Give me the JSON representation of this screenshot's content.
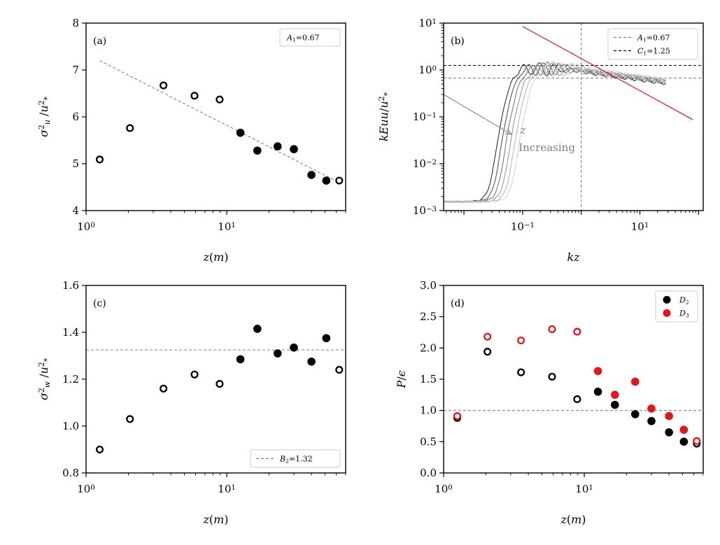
{
  "chart_data": [
    {
      "id": "a",
      "type": "scatter",
      "panel_label": "(a)",
      "xscale": "log",
      "xlim": [
        1,
        70
      ],
      "ylim": [
        4,
        8
      ],
      "xticks": [
        {
          "v": 1,
          "b": "10",
          "e": "0"
        },
        {
          "v": 10,
          "b": "10",
          "e": "1"
        }
      ],
      "yticks": [
        4,
        5,
        6,
        7,
        8
      ],
      "xlabel": "z(m)",
      "ylabel": "σu²/u*²",
      "legend": {
        "position": "top-right",
        "entries": [
          {
            "label": "A₁=0.67",
            "style": "dashed-gray"
          }
        ],
        "box_only": true
      },
      "series": [
        {
          "name": "open",
          "marker": "open",
          "color": "#000000",
          "points": [
            [
              1.25,
              5.09
            ],
            [
              2.05,
              5.76
            ],
            [
              3.55,
              6.67
            ],
            [
              5.9,
              6.45
            ],
            [
              8.9,
              6.37
            ],
            [
              63,
              4.64
            ]
          ]
        },
        {
          "name": "filled",
          "marker": "filled",
          "color": "#000000",
          "points": [
            [
              12.5,
              5.66
            ],
            [
              16.5,
              5.28
            ],
            [
              23,
              5.37
            ],
            [
              30,
              5.31
            ],
            [
              40,
              4.76
            ],
            [
              51,
              4.64
            ]
          ]
        }
      ],
      "lines": [
        {
          "kind": "segment",
          "from": [
            1.25,
            7.2
          ],
          "to": [
            60,
            4.63
          ],
          "style": "dashed-gray"
        }
      ]
    },
    {
      "id": "b",
      "type": "line",
      "panel_label": "(b)",
      "xscale": "log",
      "yscale": "log",
      "xlim": [
        0.0045,
        120
      ],
      "ylim": [
        0.001,
        10
      ],
      "xticks": [
        {
          "v": 0.1,
          "b": "10",
          "e": "−1"
        },
        {
          "v": 10,
          "b": "10",
          "e": "1"
        }
      ],
      "yticks": [
        {
          "v": 0.001,
          "b": "10",
          "e": "−3"
        },
        {
          "v": 0.01,
          "b": "10",
          "e": "−2"
        },
        {
          "v": 0.1,
          "b": "10",
          "e": "−1"
        },
        {
          "v": 1,
          "b": "10",
          "e": "0"
        },
        {
          "v": 10,
          "b": "10",
          "e": "1"
        }
      ],
      "xlabel": "kz",
      "ylabel": "kEuu/u*²",
      "legend": {
        "position": "top-right",
        "entries": [
          {
            "label": "A₁=0.67",
            "style": "dashed-gray"
          },
          {
            "label": "C₁=1.25",
            "style": "dashed-black"
          }
        ]
      },
      "hlines": [
        {
          "y": 0.67,
          "style": "dashed-gray"
        },
        {
          "y": 1.25,
          "style": "dashed-black"
        }
      ],
      "vlines": [
        {
          "x": 1.0,
          "style": "dashed-gray"
        }
      ],
      "powerlaw": {
        "from": [
          0.1,
          8.5
        ],
        "to": [
          80,
          0.087
        ],
        "color": "#e31a1c"
      },
      "annotation": {
        "text_a": "z",
        "text_b": "Increasing",
        "arrow_from": [
          0.0045,
          0.3
        ],
        "arrow_to": [
          0.065,
          0.042
        ]
      },
      "spectra": [
        {
          "name": "s1",
          "color": "#303030",
          "shift": 0.0
        },
        {
          "name": "s2",
          "color": "#555555",
          "shift": 0.075
        },
        {
          "name": "s3",
          "color": "#777777",
          "shift": 0.15
        },
        {
          "name": "s4",
          "color": "#999999",
          "shift": 0.225
        },
        {
          "name": "s5",
          "color": "#b8b8b8",
          "shift": 0.3
        },
        {
          "name": "s6",
          "color": "#d4d4d4",
          "shift": 0.375
        }
      ]
    },
    {
      "id": "c",
      "type": "scatter",
      "panel_label": "(c)",
      "xscale": "log",
      "xlim": [
        1,
        70
      ],
      "ylim": [
        0.8,
        1.6
      ],
      "xticks": [
        {
          "v": 1,
          "b": "10",
          "e": "0"
        },
        {
          "v": 10,
          "b": "10",
          "e": "1"
        }
      ],
      "yticks": [
        0.8,
        1.0,
        1.2,
        1.4,
        1.6
      ],
      "ytick_decimals": 1,
      "xlabel": "z(m)",
      "ylabel": "σw²/u*²",
      "legend": {
        "position": "bottom-right",
        "entries": [
          {
            "label": "B₂=1.32",
            "style": "dashed-gray"
          }
        ]
      },
      "hlines": [
        {
          "y": 1.325,
          "style": "dashed-gray"
        }
      ],
      "series": [
        {
          "name": "open",
          "marker": "open",
          "color": "#000000",
          "points": [
            [
              1.25,
              0.9
            ],
            [
              2.05,
              1.03
            ],
            [
              3.55,
              1.16
            ],
            [
              5.9,
              1.22
            ],
            [
              8.9,
              1.18
            ],
            [
              63,
              1.24
            ]
          ]
        },
        {
          "name": "filled",
          "marker": "filled",
          "color": "#000000",
          "points": [
            [
              12.5,
              1.285
            ],
            [
              16.5,
              1.415
            ],
            [
              23,
              1.31
            ],
            [
              30,
              1.335
            ],
            [
              40,
              1.275
            ],
            [
              51,
              1.375
            ]
          ]
        }
      ]
    },
    {
      "id": "d",
      "type": "scatter",
      "panel_label": "(d)",
      "xscale": "log",
      "xlim": [
        1,
        70
      ],
      "ylim": [
        0,
        3
      ],
      "xticks": [
        {
          "v": 1,
          "b": "10",
          "e": "0"
        },
        {
          "v": 10,
          "b": "10",
          "e": "1"
        }
      ],
      "yticks": [
        0.0,
        0.5,
        1.0,
        1.5,
        2.0,
        2.5,
        3.0
      ],
      "ytick_decimals": 1,
      "xlabel": "z(m)",
      "ylabel": "P/ϵ",
      "legend": {
        "position": "top-right",
        "entries": [
          {
            "label": "D₂",
            "style": "dot-black"
          },
          {
            "label": "D₃",
            "style": "dot-red"
          }
        ]
      },
      "hlines": [
        {
          "y": 1.0,
          "style": "dashed-gray"
        }
      ],
      "series": [
        {
          "name": "D2-open",
          "marker": "open",
          "color": "#000000",
          "points": [
            [
              1.25,
              0.88
            ],
            [
              2.05,
              1.94
            ],
            [
              3.55,
              1.61
            ],
            [
              5.9,
              1.54
            ],
            [
              8.9,
              1.18
            ],
            [
              63,
              0.47
            ]
          ]
        },
        {
          "name": "D2-filled",
          "marker": "filled",
          "color": "#000000",
          "points": [
            [
              12.5,
              1.3
            ],
            [
              16.5,
              1.09
            ],
            [
              23,
              0.94
            ],
            [
              30,
              0.83
            ],
            [
              40,
              0.65
            ],
            [
              51,
              0.5
            ]
          ]
        },
        {
          "name": "D3-open",
          "marker": "open",
          "color": "#e8141c",
          "points": [
            [
              1.25,
              0.91
            ],
            [
              2.05,
              2.18
            ],
            [
              3.55,
              2.12
            ],
            [
              5.9,
              2.3
            ],
            [
              8.9,
              2.26
            ],
            [
              63,
              0.51
            ]
          ]
        },
        {
          "name": "D3-filled",
          "marker": "filled",
          "color": "#e8141c",
          "points": [
            [
              12.5,
              1.63
            ],
            [
              16.5,
              1.25
            ],
            [
              23,
              1.46
            ],
            [
              30,
              1.03
            ],
            [
              40,
              0.91
            ],
            [
              51,
              0.69
            ]
          ]
        }
      ]
    }
  ]
}
